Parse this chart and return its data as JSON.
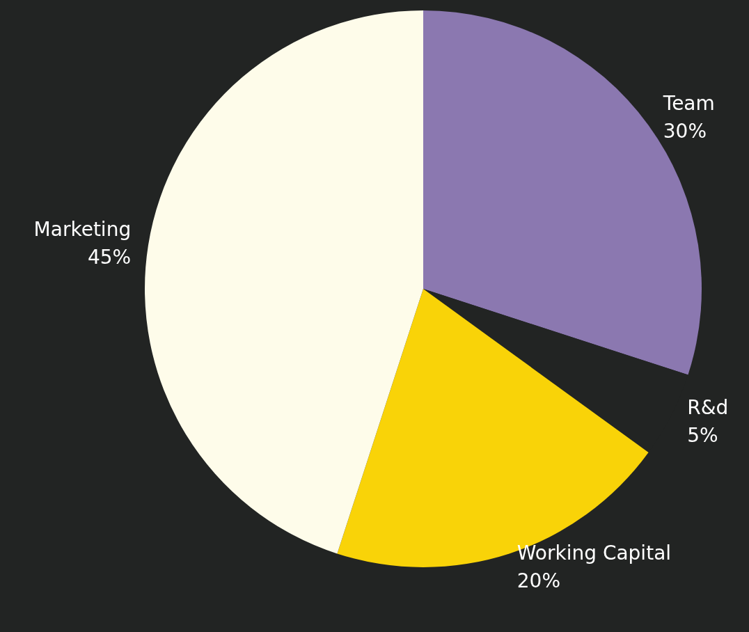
{
  "chart_data": {
    "type": "pie",
    "categories": [
      "Team",
      "R&d",
      "Working Capital",
      "Marketing"
    ],
    "values": [
      30,
      5,
      20,
      45
    ],
    "value_labels": [
      "30%",
      "5%",
      "20%",
      "45%"
    ],
    "colors": [
      "#8b78b0",
      "#222423",
      "#f9d308",
      "#fefcea"
    ],
    "legend": false
  }
}
